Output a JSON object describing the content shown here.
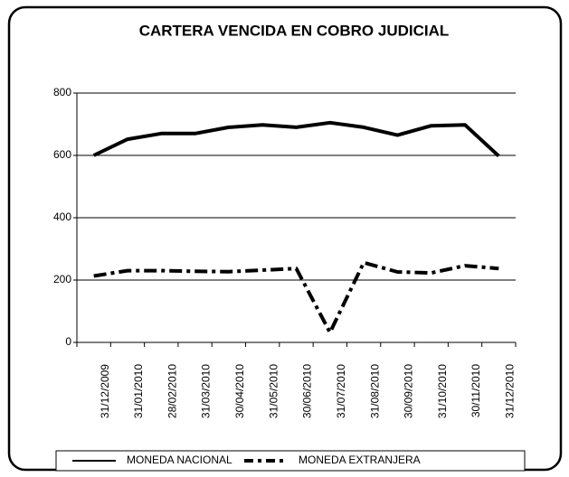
{
  "chart_data": {
    "type": "line",
    "title": "CARTERA VENCIDA EN COBRO JUDICIAL",
    "categories": [
      "31/12/2009",
      "31/01/2010",
      "28/02/2010",
      "31/03/2010",
      "30/04/2010",
      "31/05/2010",
      "30/06/2010",
      "31/07/2010",
      "31/08/2010",
      "30/09/2010",
      "31/10/2010",
      "30/11/2010",
      "31/12/2010"
    ],
    "series": [
      {
        "name": "MONEDA NACIONAL",
        "color": "#000000",
        "values": [
          600,
          652,
          670,
          670,
          690,
          698,
          690,
          705,
          690,
          665,
          695,
          698,
          598
        ]
      },
      {
        "name": "MONEDA EXTRANJERA",
        "color": "#000000",
        "values": [
          213,
          230,
          230,
          228,
          227,
          232,
          237,
          32,
          256,
          226,
          223,
          246,
          237
        ]
      }
    ],
    "ylim": [
      0,
      800
    ],
    "yticks": [
      0,
      200,
      400,
      600,
      800
    ],
    "grid": true,
    "legend": "bottom"
  }
}
